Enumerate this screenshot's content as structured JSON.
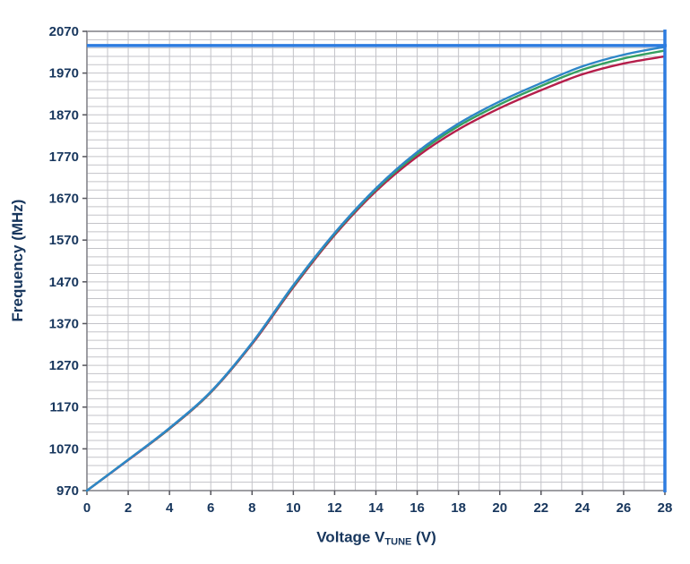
{
  "chart_data": {
    "type": "line",
    "title": "",
    "xlabel": {
      "prefix": "Voltage V",
      "sub": "TUNE",
      "suffix": " (V)"
    },
    "ylabel": "Frequency (MHz)",
    "xlim": [
      0,
      28
    ],
    "ylim": [
      970,
      2070
    ],
    "x_ticks": [
      0,
      2,
      4,
      6,
      8,
      10,
      12,
      14,
      16,
      18,
      20,
      22,
      24,
      26,
      28
    ],
    "y_ticks": [
      970,
      1070,
      1170,
      1270,
      1370,
      1470,
      1570,
      1670,
      1770,
      1870,
      1970,
      2070
    ],
    "x_minor_step": 1,
    "y_minor_step": 20,
    "grid": true,
    "legend": "none",
    "x": [
      0,
      2,
      4,
      6,
      8,
      10,
      12,
      14,
      16,
      18,
      20,
      22,
      24,
      26,
      28
    ],
    "series": [
      {
        "name": "curve-red",
        "color": "#b51e4b",
        "values": [
          970,
          1043,
          1118,
          1205,
          1321,
          1457,
          1582,
          1687,
          1770,
          1835,
          1886,
          1929,
          1967,
          1993,
          2010
        ]
      },
      {
        "name": "curve-green",
        "color": "#35a061",
        "values": [
          970,
          1044,
          1119,
          1206,
          1323,
          1460,
          1585,
          1691,
          1776,
          1843,
          1895,
          1939,
          1978,
          2005,
          2024
        ]
      },
      {
        "name": "curve-blue",
        "color": "#2e86c8",
        "values": [
          970,
          1044,
          1120,
          1207,
          1324,
          1462,
          1587,
          1694,
          1781,
          1849,
          1902,
          1946,
          1986,
          2014,
          2033
        ]
      }
    ],
    "reference_lines": [
      {
        "orientation": "horizontal",
        "value": 2036,
        "color": "#2d7ce0"
      },
      {
        "orientation": "vertical",
        "value": 28,
        "color": "#2d7ce0"
      }
    ],
    "colors": {
      "axis_text": "#17365d",
      "grid": "#c3c3c8",
      "border": "#86868c",
      "tick_mark": "#55555c"
    }
  }
}
